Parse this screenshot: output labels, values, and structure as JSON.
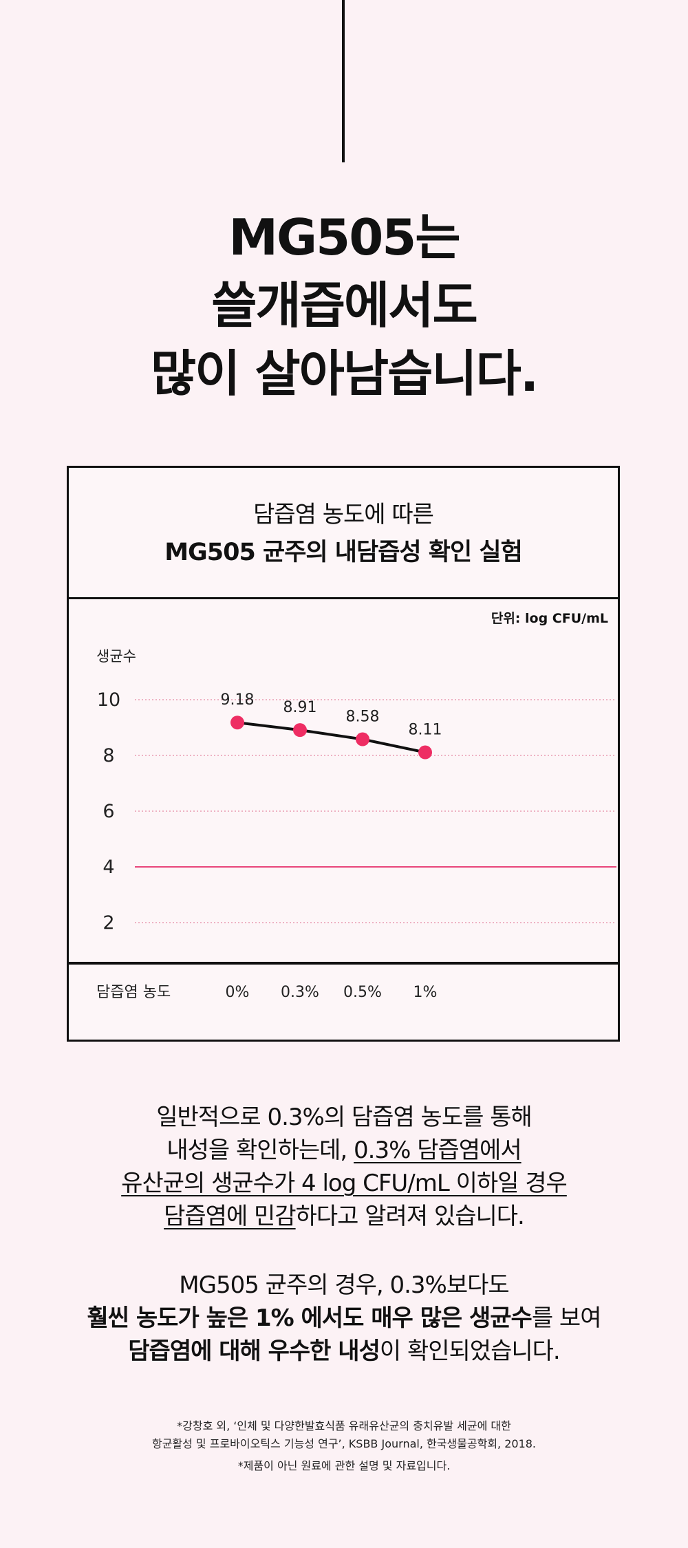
{
  "headline": [
    "MG505는",
    "쓸개즙에서도",
    "많이 살아남습니다."
  ],
  "panel": {
    "title_line1": "담즙염 농도에 따른",
    "title_line2": "MG505 균주의 내담즙성 확인 실험",
    "unit": "단위: log CFU/mL"
  },
  "chart_data": {
    "type": "line",
    "ylabel": "생균수",
    "xlabel": "담즙염 농도",
    "categories": [
      "0%",
      "0.3%",
      "0.5%",
      "1%"
    ],
    "values": [
      9.18,
      8.91,
      8.58,
      8.11
    ],
    "value_labels": [
      "9.18",
      "8.91",
      "8.58",
      "8.11"
    ],
    "yticks": [
      "10",
      "8",
      "6",
      "4",
      "2"
    ],
    "ylim": [
      0.5,
      11
    ],
    "threshold": 4,
    "colors": {
      "marker": "#ee2d63",
      "threshold": "#e8457a",
      "grid": "#e58aa3",
      "line": "#111111"
    }
  },
  "body1": {
    "line1": "일반적으로 0.3%의 담즙염 농도를 통해",
    "line2_plain": "내성을 확인하는데, ",
    "line2_u": "0.3% 담즙염에서 ",
    "line3_u": "유산균의 생균수가 4 log CFU/mL 이하일 경우 ",
    "line4_u": "담즙염에 민감",
    "line4_plain": "하다고 알려져 있습니다."
  },
  "body2": {
    "line1": "MG505 균주의 경우, 0.3%보다도",
    "line2_bold": "훨씬 농도가 높은 1% 에서도 매우 많은 생균수",
    "line2_plain": "를 보여",
    "line3_bold": "담즙염에 대해 우수한 내성",
    "line3_plain": "이 확인되었습니다."
  },
  "footnote": {
    "line1": "*강창호 외, ‘인체 및 다양한발효식품 유래유산균의 충치유발 세균에 대한",
    "line2": "항균활성 및 프로바이오틱스 기능성 연구’, KSBB Journal, 한국생물공학회, 2018.",
    "line3": "*제품이 아닌 원료에 관한 설명 및 자료입니다."
  }
}
